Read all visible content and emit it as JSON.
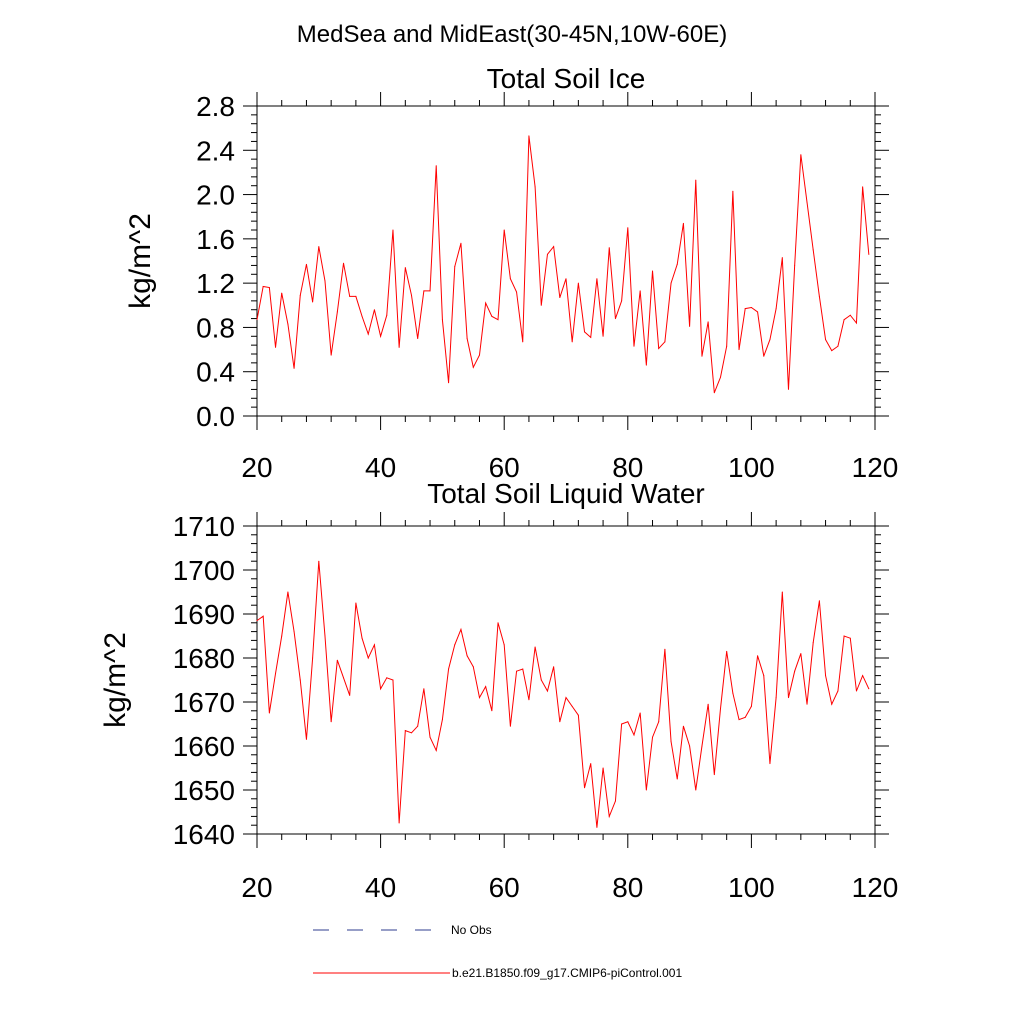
{
  "figure_title": "MedSea and MidEast(30-45N,10W-60E)",
  "colors": {
    "model_line": "#ff0000",
    "obs_line": "#2f3d8f",
    "axis": "#000000"
  },
  "chart_data": [
    {
      "type": "line",
      "title": "Total Soil Ice",
      "xlabel": "",
      "ylabel": "kg/m^2",
      "xlim": [
        20,
        120
      ],
      "ylim": [
        0.0,
        2.8
      ],
      "xticks": [
        20,
        40,
        60,
        80,
        100,
        120
      ],
      "yticks": [
        "0.0",
        "0.4",
        "0.8",
        "1.2",
        "1.6",
        "2.0",
        "2.4",
        "2.8"
      ],
      "grid": false,
      "series": [
        {
          "name": "b.e21.B1850.f09_g17.CMIP6-piControl.001",
          "x": [
            20,
            21,
            22,
            23,
            24,
            25,
            26,
            27,
            28,
            29,
            30,
            31,
            32,
            33,
            34,
            35,
            36,
            37,
            38,
            39,
            40,
            41,
            42,
            43,
            44,
            45,
            46,
            47,
            48,
            49,
            50,
            51,
            52,
            53,
            54,
            55,
            56,
            57,
            58,
            59,
            60,
            61,
            62,
            63,
            64,
            65,
            66,
            67,
            68,
            69,
            70,
            71,
            72,
            73,
            74,
            75,
            76,
            77,
            78,
            79,
            80,
            81,
            82,
            83,
            84,
            85,
            86,
            87,
            88,
            89,
            90,
            91,
            92,
            93,
            94,
            95,
            96,
            97,
            98,
            99,
            100,
            101,
            102,
            103,
            104,
            105,
            106,
            107,
            108,
            109,
            110,
            111,
            112,
            113,
            114,
            115,
            116,
            117,
            118,
            119
          ],
          "values": [
            0.87,
            1.17,
            1.16,
            0.62,
            1.11,
            0.83,
            0.43,
            1.09,
            1.37,
            1.03,
            1.53,
            1.22,
            0.55,
            0.94,
            1.38,
            1.08,
            1.08,
            0.9,
            0.74,
            0.96,
            0.72,
            0.91,
            1.68,
            0.62,
            1.34,
            1.09,
            0.7,
            1.13,
            1.13,
            2.26,
            0.87,
            0.3,
            1.35,
            1.56,
            0.7,
            0.44,
            0.55,
            1.02,
            0.9,
            0.87,
            1.68,
            1.24,
            1.12,
            0.67,
            2.53,
            2.07,
            1.0,
            1.46,
            1.53,
            1.07,
            1.24,
            0.67,
            1.2,
            0.76,
            0.71,
            1.24,
            0.72,
            1.52,
            0.88,
            1.04,
            1.7,
            0.63,
            1.13,
            0.46,
            1.31,
            0.61,
            0.67,
            1.2,
            1.37,
            1.74,
            0.81,
            2.13,
            0.54,
            0.85,
            0.21,
            0.35,
            0.63,
            2.03,
            0.6,
            0.97,
            0.98,
            0.94,
            0.54,
            0.69,
            0.97,
            1.43,
            0.24,
            1.36,
            2.36,
            1.93,
            1.5,
            1.08,
            0.69,
            0.59,
            0.63,
            0.87,
            0.91,
            0.84,
            2.07,
            1.46
          ]
        }
      ]
    },
    {
      "type": "line",
      "title": "Total Soil Liquid Water",
      "xlabel": "",
      "ylabel": "kg/m^2",
      "xlim": [
        20,
        120
      ],
      "ylim": [
        1640,
        1710
      ],
      "xticks": [
        20,
        40,
        60,
        80,
        100,
        120
      ],
      "yticks": [
        "1640",
        "1650",
        "1660",
        "1670",
        "1680",
        "1690",
        "1700",
        "1710"
      ],
      "grid": false,
      "series": [
        {
          "name": "b.e21.B1850.f09_g17.CMIP6-piControl.001",
          "x": [
            20,
            21,
            22,
            23,
            24,
            25,
            26,
            27,
            28,
            29,
            30,
            31,
            32,
            33,
            34,
            35,
            36,
            37,
            38,
            39,
            40,
            41,
            42,
            43,
            44,
            45,
            46,
            47,
            48,
            49,
            50,
            51,
            52,
            53,
            54,
            55,
            56,
            57,
            58,
            59,
            60,
            61,
            62,
            63,
            64,
            65,
            66,
            67,
            68,
            69,
            70,
            71,
            72,
            73,
            74,
            75,
            76,
            77,
            78,
            79,
            80,
            81,
            82,
            83,
            84,
            85,
            86,
            87,
            88,
            89,
            90,
            91,
            92,
            93,
            94,
            95,
            96,
            97,
            98,
            99,
            100,
            101,
            102,
            103,
            104,
            105,
            106,
            107,
            108,
            109,
            110,
            111,
            112,
            113,
            114,
            115,
            116,
            117,
            118,
            119
          ],
          "values": [
            1688.5,
            1689.5,
            1667.5,
            1676.5,
            1685,
            1695,
            1686,
            1675,
            1661.5,
            1680,
            1702,
            1685,
            1665.5,
            1679.5,
            1675.5,
            1671.5,
            1692.5,
            1684.5,
            1680,
            1683,
            1673,
            1675.5,
            1675,
            1642.5,
            1663.5,
            1663,
            1664.5,
            1673,
            1662,
            1659,
            1666,
            1677.5,
            1683,
            1686.5,
            1680.5,
            1678,
            1671,
            1673.5,
            1668,
            1688,
            1683,
            1664.5,
            1677,
            1677.5,
            1670.5,
            1682.5,
            1675,
            1672.5,
            1678,
            1665.5,
            1671,
            1669,
            1667,
            1650.5,
            1656,
            1641.5,
            1655,
            1644,
            1647.5,
            1665,
            1665.5,
            1662.5,
            1667.5,
            1650,
            1662,
            1665.5,
            1682,
            1661,
            1652.5,
            1664.5,
            1660,
            1650,
            1660,
            1669.5,
            1653.5,
            1668.5,
            1681.5,
            1672,
            1666,
            1666.5,
            1669,
            1680.5,
            1676,
            1656,
            1671,
            1695,
            1671,
            1677,
            1681,
            1669.5,
            1683.5,
            1693,
            1676,
            1669.5,
            1672.5,
            1685,
            1684.5,
            1672.5,
            1676,
            1673
          ]
        }
      ]
    }
  ],
  "legend": [
    {
      "label": "No Obs",
      "style": "dashed",
      "color": "#2f3d8f"
    },
    {
      "label": "b.e21.B1850.f09_g17.CMIP6-piControl.001",
      "style": "solid",
      "color": "#ff0000"
    }
  ]
}
